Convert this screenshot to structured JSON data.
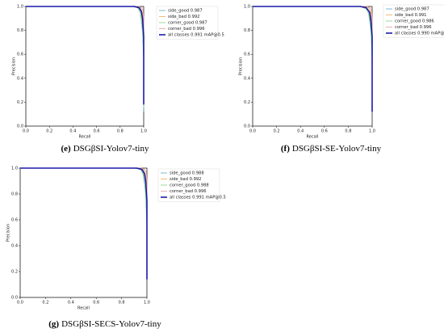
{
  "chart_data": [
    {
      "type": "line",
      "caption_label": "(e)",
      "caption": "DSGβSI-Yolov7-tiny",
      "xlabel": "Recall",
      "ylabel": "Precision",
      "xlim": [
        0,
        1
      ],
      "ylim": [
        0,
        1
      ],
      "xticks": [
        {
          "value": 0,
          "label": "0.0"
        },
        0.2,
        0.4,
        0.6,
        0.8,
        {
          "value": 1,
          "label": "1.0"
        }
      ],
      "yticks": [
        {
          "value": 0,
          "label": "0.0"
        },
        0.2,
        0.4,
        0.6,
        0.8,
        {
          "value": 1,
          "label": "1.0"
        }
      ],
      "series": [
        {
          "name": "side_good 0.987",
          "color": "#5fa8c8",
          "x": [
            0,
            0.9,
            0.95,
            0.97,
            0.98,
            0.99,
            1.0,
            1.0
          ],
          "values": [
            1,
            1,
            0.99,
            0.96,
            0.9,
            0.8,
            0.55,
            0.12
          ]
        },
        {
          "name": "side_bad 0.992",
          "color": "#f2a85a",
          "x": [
            0,
            0.93,
            0.97,
            0.99,
            1.0,
            1.0
          ],
          "values": [
            1,
            1,
            0.99,
            0.95,
            0.85,
            0.2
          ]
        },
        {
          "name": "corner_good 0.987",
          "color": "#7fcf7f",
          "x": [
            0,
            0.9,
            0.95,
            0.97,
            0.98,
            0.99,
            1.0,
            1.0
          ],
          "values": [
            1,
            1,
            0.99,
            0.95,
            0.88,
            0.78,
            0.6,
            0.15
          ]
        },
        {
          "name": "corner_bad 0.996",
          "color": "#e89a9a",
          "x": [
            0,
            0.96,
            0.98,
            0.995,
            1.0,
            1.0
          ],
          "values": [
            1,
            1,
            0.99,
            0.97,
            0.9,
            0.3
          ]
        },
        {
          "name": "all classes 0.991 mAP@0.5",
          "color": "#1a1aa8",
          "x": [
            0,
            0.92,
            0.96,
            0.98,
            0.99,
            1.0,
            1.0
          ],
          "values": [
            1,
            1,
            0.99,
            0.96,
            0.9,
            0.75,
            0.18
          ]
        }
      ]
    },
    {
      "type": "line",
      "caption_label": "(f)",
      "caption": "DSGβSI-SE-Yolov7-tiny",
      "xlabel": "Recall",
      "ylabel": "Precision",
      "xlim": [
        0,
        1
      ],
      "ylim": [
        0,
        1
      ],
      "xticks": [
        {
          "value": 0,
          "label": "0.0"
        },
        0.2,
        0.4,
        0.6,
        0.8,
        {
          "value": 1,
          "label": "1.0"
        }
      ],
      "yticks": [
        {
          "value": 0,
          "label": "0.0"
        },
        0.2,
        0.4,
        0.6,
        0.8,
        {
          "value": 1,
          "label": "1.0"
        }
      ],
      "series": [
        {
          "name": "side_good 0.987",
          "color": "#5fa8c8",
          "x": [
            0,
            0.9,
            0.95,
            0.97,
            0.98,
            0.99,
            1.0,
            1.0
          ],
          "values": [
            1,
            1,
            0.99,
            0.96,
            0.9,
            0.8,
            0.55,
            0.12
          ]
        },
        {
          "name": "side_bad 0.991",
          "color": "#f2a85a",
          "x": [
            0,
            0.93,
            0.97,
            0.99,
            1.0,
            1.0
          ],
          "values": [
            1,
            1,
            0.99,
            0.95,
            0.85,
            0.2
          ]
        },
        {
          "name": "corner_good 0.986",
          "color": "#7fcf7f",
          "x": [
            0,
            0.9,
            0.95,
            0.97,
            0.98,
            0.99,
            1.0,
            1.0
          ],
          "values": [
            1,
            1,
            0.98,
            0.94,
            0.87,
            0.78,
            0.6,
            0.15
          ]
        },
        {
          "name": "corner_bad 0.996",
          "color": "#e89a9a",
          "x": [
            0,
            0.96,
            0.98,
            0.995,
            1.0,
            1.0
          ],
          "values": [
            1,
            1,
            0.99,
            0.97,
            0.9,
            0.3
          ]
        },
        {
          "name": "all classes 0.990 mAP@0.5",
          "color": "#1a1aa8",
          "x": [
            0,
            0.9,
            0.95,
            0.98,
            0.99,
            1.0,
            1.0
          ],
          "values": [
            1,
            1,
            0.99,
            0.95,
            0.88,
            0.75,
            0.12
          ]
        }
      ]
    },
    {
      "type": "line",
      "caption_label": "(g)",
      "caption": "DSGβSI-SECS-Yolov7-tiny",
      "xlabel": "Recall",
      "ylabel": "Precision",
      "xlim": [
        0,
        1
      ],
      "ylim": [
        0,
        1
      ],
      "xticks": [
        {
          "value": 0,
          "label": "0.0"
        },
        0.2,
        0.4,
        0.6,
        0.8,
        {
          "value": 1,
          "label": "1.0"
        }
      ],
      "yticks": [
        {
          "value": 0,
          "label": "0.0"
        },
        0.2,
        0.4,
        0.6,
        0.8,
        {
          "value": 1,
          "label": "1.0"
        }
      ],
      "series": [
        {
          "name": "side_good 0.988",
          "color": "#5fa8c8",
          "x": [
            0,
            0.9,
            0.95,
            0.97,
            0.98,
            0.99,
            1.0,
            1.0
          ],
          "values": [
            1,
            1,
            0.99,
            0.96,
            0.9,
            0.8,
            0.55,
            0.14
          ]
        },
        {
          "name": "side_bad 0.992",
          "color": "#f2a85a",
          "x": [
            0,
            0.93,
            0.97,
            0.99,
            1.0,
            1.0
          ],
          "values": [
            1,
            1,
            0.99,
            0.95,
            0.85,
            0.2
          ]
        },
        {
          "name": "corner_good 0.988",
          "color": "#7fcf7f",
          "x": [
            0,
            0.9,
            0.95,
            0.97,
            0.98,
            0.99,
            1.0,
            1.0
          ],
          "values": [
            1,
            1,
            0.99,
            0.95,
            0.88,
            0.8,
            0.6,
            0.15
          ]
        },
        {
          "name": "corner_bad 0.996",
          "color": "#e89a9a",
          "x": [
            0,
            0.96,
            0.98,
            0.995,
            1.0,
            1.0
          ],
          "values": [
            1,
            1,
            0.99,
            0.97,
            0.9,
            0.3
          ]
        },
        {
          "name": "all classes 0.991 mAP@0.5",
          "color": "#1a1aa8",
          "x": [
            0,
            0.92,
            0.96,
            0.98,
            0.99,
            1.0,
            1.0
          ],
          "values": [
            1,
            1,
            0.99,
            0.96,
            0.9,
            0.75,
            0.14
          ]
        }
      ]
    }
  ]
}
